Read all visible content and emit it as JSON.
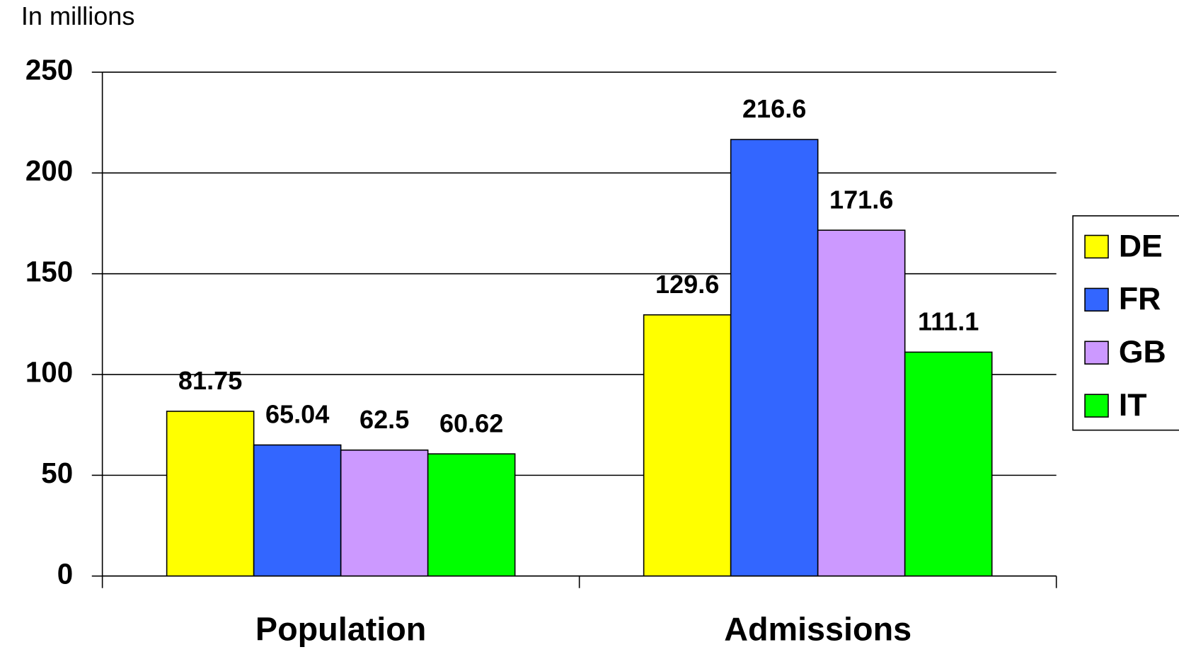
{
  "chart_data": {
    "type": "bar",
    "subtitle": "In millions",
    "categories": [
      "Population",
      "Admissions"
    ],
    "series": [
      {
        "name": "DE",
        "color": "#ffff00",
        "values": [
          81.75,
          129.6
        ]
      },
      {
        "name": "FR",
        "color": "#3366ff",
        "values": [
          65.04,
          216.6
        ]
      },
      {
        "name": "GB",
        "color": "#cc99ff",
        "values": [
          62.5,
          171.6
        ]
      },
      {
        "name": "IT",
        "color": "#00ff00",
        "values": [
          60.62,
          111.1
        ]
      }
    ],
    "ylim": [
      0,
      250
    ],
    "yticks": [
      0,
      50,
      100,
      150,
      200,
      250
    ],
    "grid": true,
    "legend": "right"
  }
}
